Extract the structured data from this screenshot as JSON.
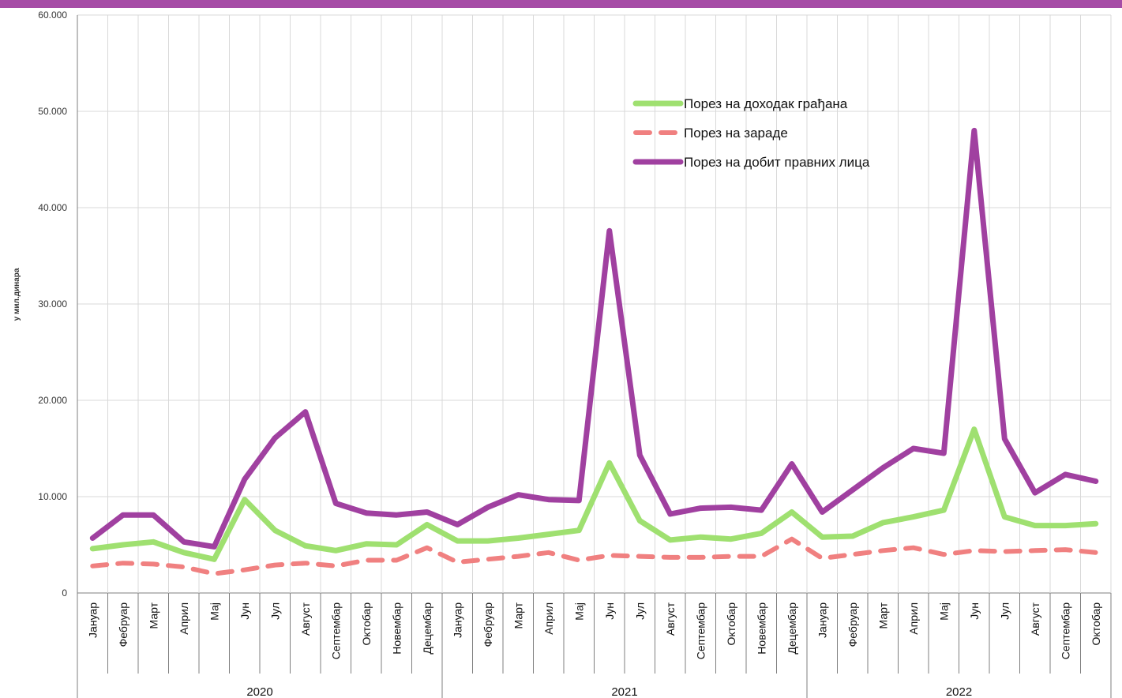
{
  "colors": {
    "top_bar": "#a64ca6",
    "grid": "#d9d9d9",
    "axis": "#7f7f7f",
    "income_tax": "#9fe070",
    "wage_tax": "#f08080",
    "profit_tax": "#a040a0"
  },
  "chart_data": {
    "type": "line",
    "ylabel": "у мил.динара",
    "ylim": [
      0,
      60000
    ],
    "yticks": [
      0,
      10000,
      20000,
      30000,
      40000,
      50000,
      60000
    ],
    "ytick_labels": [
      "0",
      "10.000",
      "20.000",
      "30.000",
      "40.000",
      "50.000",
      "60.000"
    ],
    "grid": true,
    "legend_position": "top-right",
    "categories": [
      "Јануар",
      "Фебруар",
      "Март",
      "Април",
      "Мај",
      "Јун",
      "Јул",
      "Август",
      "Септембар",
      "Октобар",
      "Новембар",
      "Децембар",
      "Јануар",
      "Фебруар",
      "Март",
      "Април",
      "Мај",
      "Јун",
      "Јул",
      "Август",
      "Септембар",
      "Октобар",
      "Новембар",
      "Децембар",
      "Јануар",
      "Фебруар",
      "Март",
      "Април",
      "Мај",
      "Јун",
      "Јул",
      "Август",
      "Септембар",
      "Октобар"
    ],
    "year_groups": [
      {
        "label": "2020",
        "count": 12
      },
      {
        "label": "2021",
        "count": 12
      },
      {
        "label": "2022",
        "count": 10
      }
    ],
    "series": [
      {
        "name": "Порез на доходак грађана",
        "style": "solid",
        "color_key": "income_tax",
        "values": [
          4600,
          5000,
          5300,
          4200,
          3500,
          9700,
          6500,
          4900,
          4400,
          5100,
          5000,
          7100,
          5400,
          5400,
          5700,
          6100,
          6500,
          13500,
          7500,
          5500,
          5800,
          5600,
          6200,
          8400,
          5800,
          5900,
          7300,
          7900,
          8600,
          17000,
          7900,
          7000,
          7000,
          7200
        ]
      },
      {
        "name": "Порез на зараде",
        "style": "dashed",
        "color_key": "wage_tax",
        "values": [
          2800,
          3100,
          3000,
          2700,
          2000,
          2400,
          2900,
          3100,
          2800,
          3400,
          3400,
          4700,
          3200,
          3500,
          3800,
          4200,
          3400,
          3900,
          3800,
          3700,
          3700,
          3800,
          3800,
          5600,
          3600,
          4000,
          4400,
          4700,
          4000,
          4400,
          4300,
          4400,
          4500,
          4200
        ]
      },
      {
        "name": "Порез на добит правних лица",
        "style": "solid",
        "color_key": "profit_tax",
        "values": [
          5700,
          8100,
          8100,
          5300,
          4800,
          11800,
          16100,
          18800,
          9300,
          8300,
          8100,
          8400,
          7100,
          8900,
          10200,
          9700,
          9600,
          37600,
          14300,
          8200,
          8800,
          8900,
          8600,
          13400,
          8400,
          10700,
          13000,
          15000,
          14500,
          48000,
          16000,
          10400,
          12300,
          11600
        ]
      }
    ]
  }
}
